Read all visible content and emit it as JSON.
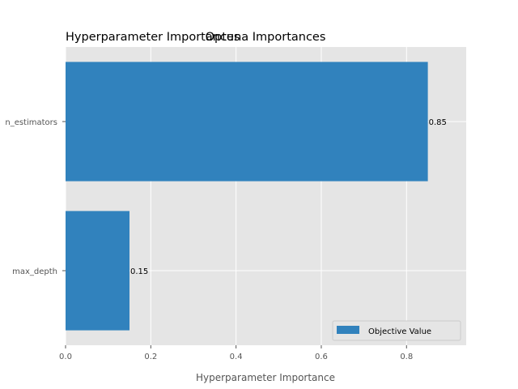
{
  "chart_data": {
    "type": "bar",
    "orientation": "horizontal",
    "titles": [
      "Hyperparameter Importances",
      "Optuna Importances"
    ],
    "xlabel": "Hyperparameter Importance",
    "ylabel": "",
    "categories": [
      "n_estimators",
      "max_depth"
    ],
    "series": [
      {
        "name": "Objective Value",
        "values": [
          0.85,
          0.15
        ],
        "color": "#3182bd"
      }
    ],
    "value_labels": [
      "0.85",
      "0.15"
    ],
    "x_ticks": [
      0.0,
      0.2,
      0.4,
      0.6,
      0.8
    ],
    "x_tick_labels": [
      "0.0",
      "0.2",
      "0.4",
      "0.6",
      "0.8"
    ],
    "xlim": [
      0,
      0.94
    ],
    "grid": true,
    "legend_position": "lower-right",
    "style": {
      "axes_facecolor": "#e5e5e5",
      "grid_color": "#ffffff",
      "text_color": "#555555"
    }
  }
}
